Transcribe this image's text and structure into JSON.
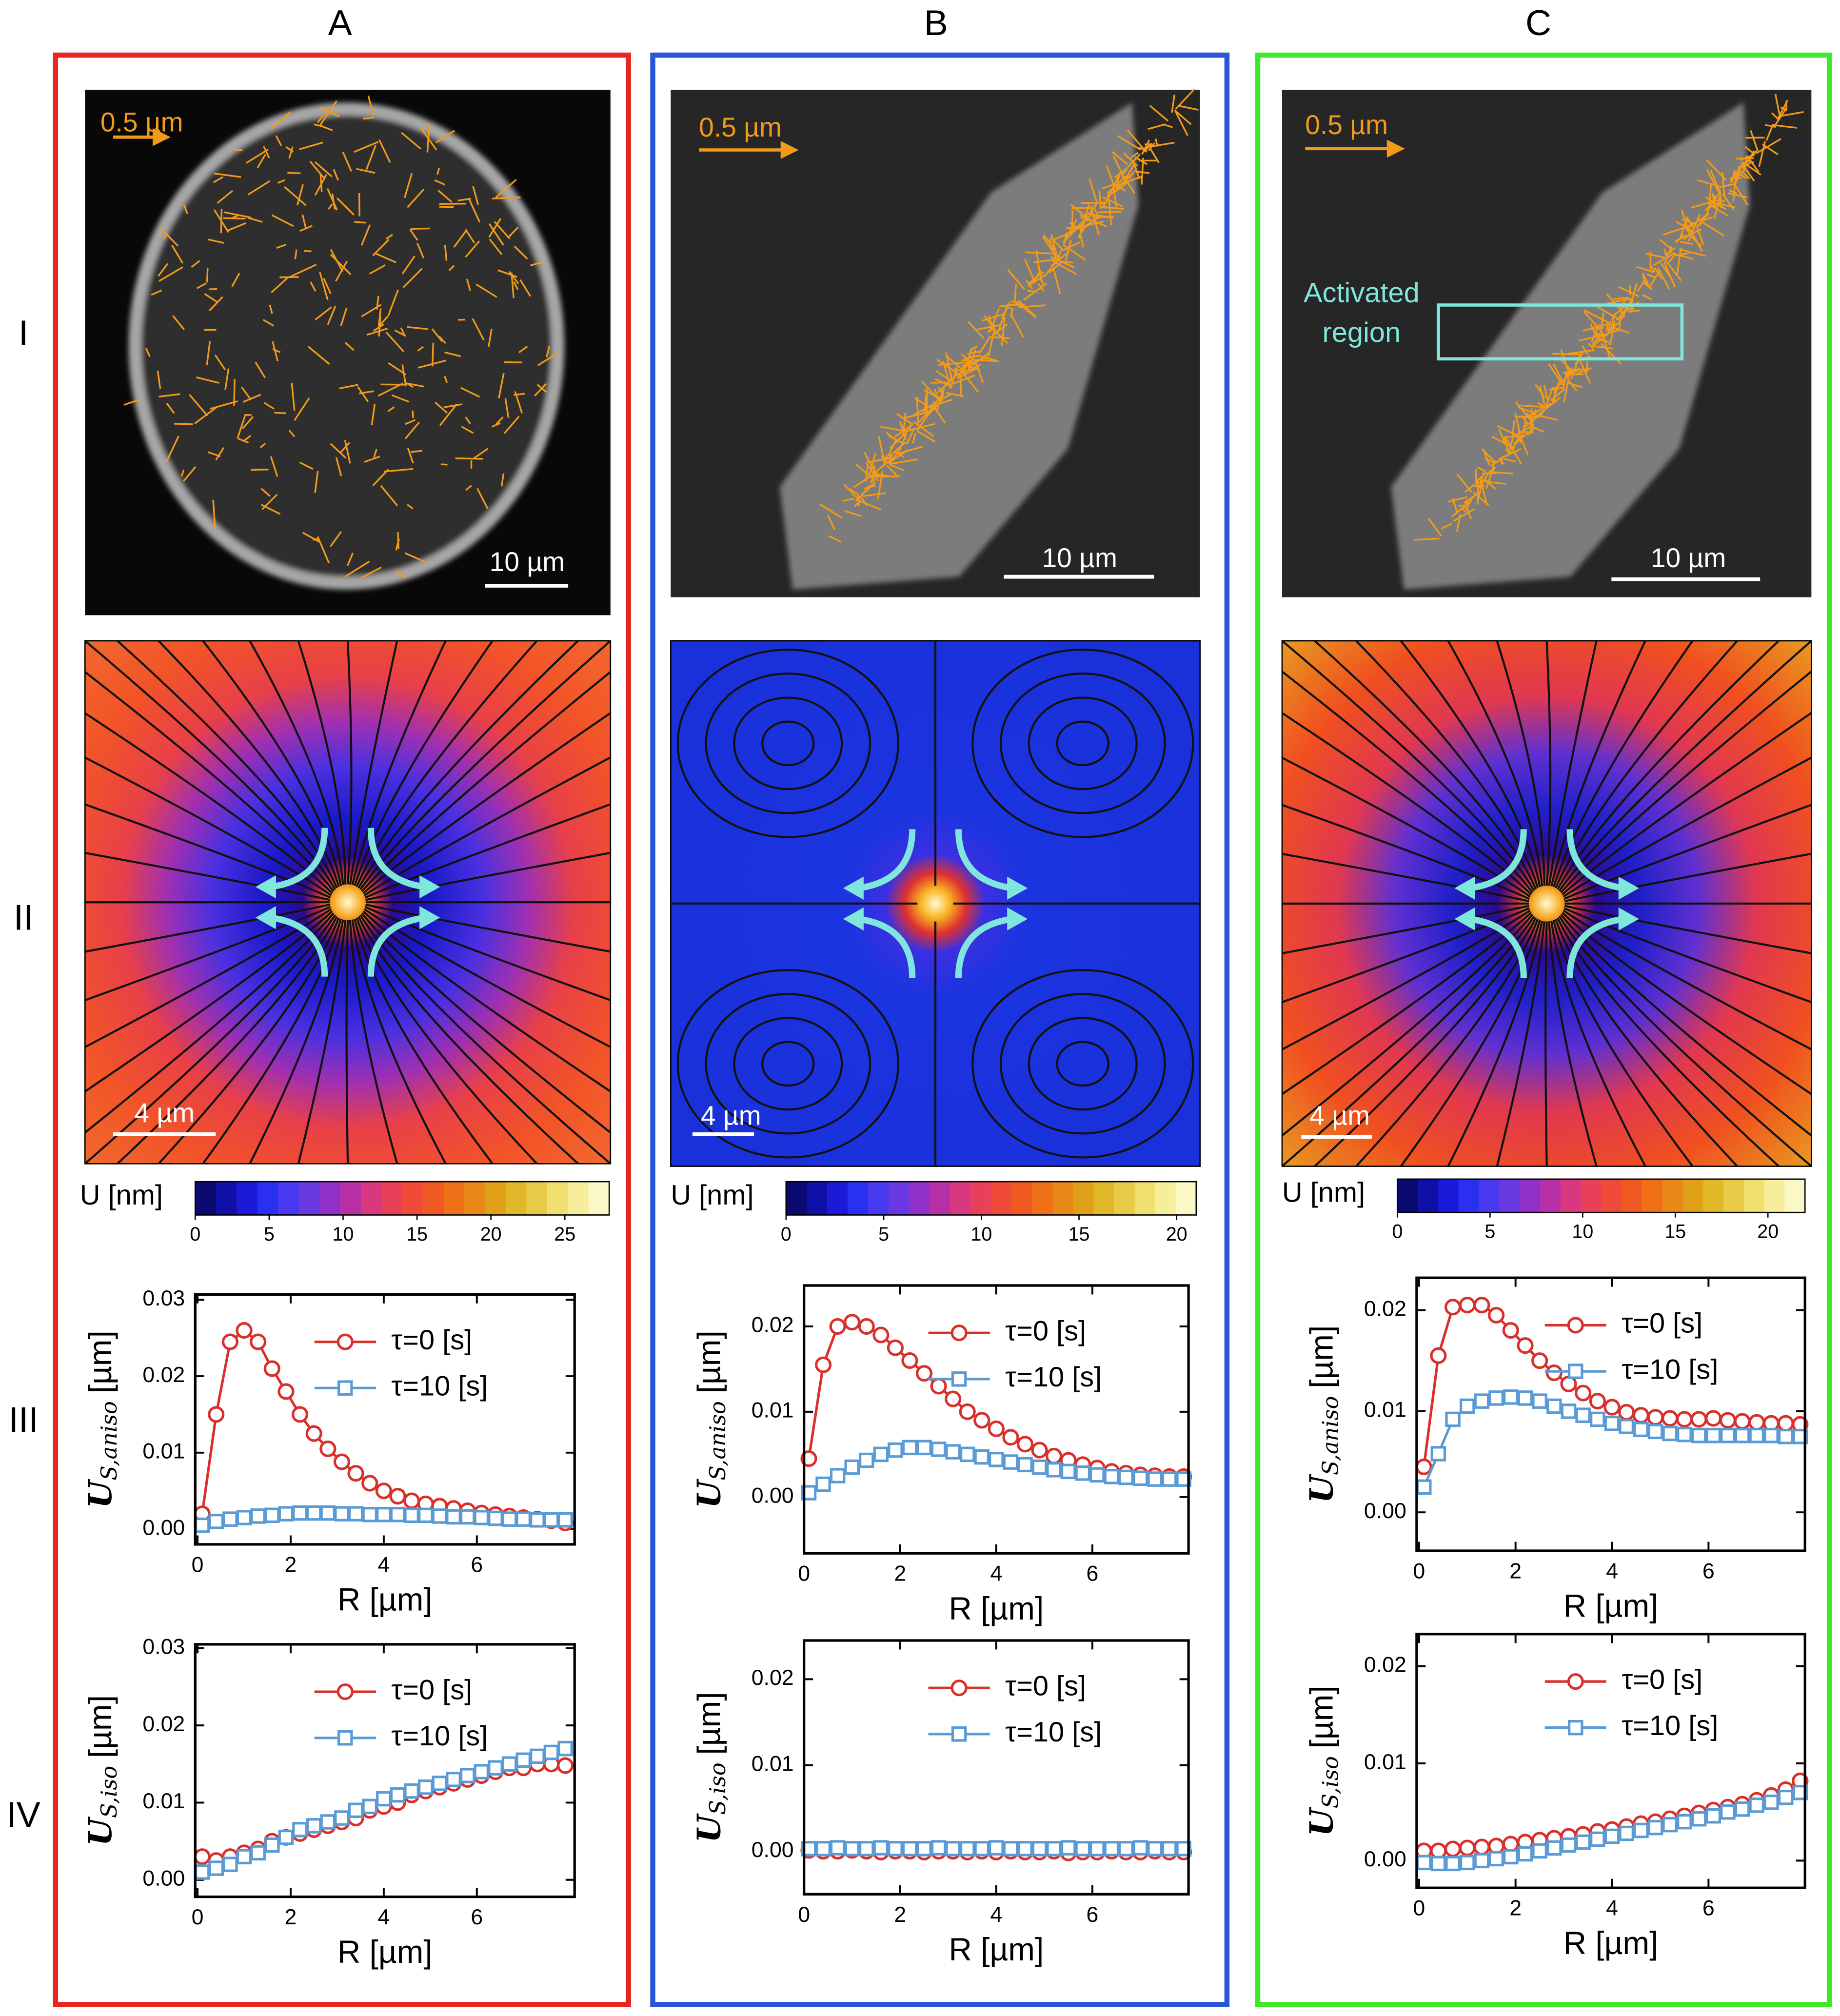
{
  "columns": [
    "A",
    "B",
    "C"
  ],
  "rows": [
    "I",
    "II",
    "III",
    "IV"
  ],
  "images": [
    {
      "arrow_label": "0.5 µm",
      "scale_label": "10 µm"
    },
    {
      "arrow_label": "0.5 µm",
      "scale_label": "10 µm"
    },
    {
      "arrow_label": "0.5 µm",
      "scale_label": "10 µm",
      "annotation": [
        "Activated",
        "region"
      ]
    }
  ],
  "maps": [
    {
      "scale_label": "4 µm",
      "colorbar": {
        "label": "U [nm]",
        "lim": [
          0,
          28
        ],
        "ticks": [
          0,
          5,
          10,
          15,
          20,
          25
        ]
      }
    },
    {
      "scale_label": "4 µm",
      "colorbar": {
        "label": "U [nm]",
        "lim": [
          0,
          21
        ],
        "ticks": [
          0,
          5,
          10,
          15,
          20
        ]
      }
    },
    {
      "scale_label": "4 µm",
      "colorbar": {
        "label": "U [nm]",
        "lim": [
          0,
          22
        ],
        "ticks": [
          0,
          5,
          10,
          15,
          20
        ]
      }
    }
  ],
  "chart_data": [
    {
      "type": "line",
      "xlabel": "R [µm]",
      "ylabel": [
        "U",
        "S,aniso",
        "[µm]"
      ],
      "xlim": [
        -0.05,
        8.1
      ],
      "ylim": [
        -0.002,
        0.0307
      ],
      "xticks": [
        0,
        2,
        4,
        6
      ],
      "yticks": [
        {
          "value": 0,
          "label": "0.00"
        },
        0.01,
        0.02,
        0.03
      ],
      "legend": "upper right",
      "x": [
        0.1,
        0.4,
        0.7,
        1.0,
        1.3,
        1.6,
        1.9,
        2.2,
        2.5,
        2.8,
        3.1,
        3.4,
        3.7,
        4.0,
        4.3,
        4.6,
        4.9,
        5.2,
        5.5,
        5.8,
        6.1,
        6.4,
        6.7,
        7.0,
        7.3,
        7.6,
        7.9
      ],
      "series": [
        {
          "name": "τ=0 [s]",
          "color": "#d9302c",
          "marker": "circle",
          "values": [
            0.002,
            0.015,
            0.0245,
            0.026,
            0.0245,
            0.021,
            0.018,
            0.015,
            0.0125,
            0.0105,
            0.0088,
            0.0073,
            0.006,
            0.005,
            0.0043,
            0.0037,
            0.0033,
            0.003,
            0.0027,
            0.0024,
            0.0021,
            0.0019,
            0.0017,
            0.0015,
            0.0013,
            0.0011,
            0.0008
          ]
        },
        {
          "name": "τ=10 [s]",
          "color": "#5b9bd5",
          "marker": "square",
          "values": [
            0.0005,
            0.001,
            0.0013,
            0.0015,
            0.0017,
            0.0018,
            0.002,
            0.0021,
            0.0021,
            0.0021,
            0.002,
            0.002,
            0.0019,
            0.0019,
            0.0019,
            0.0018,
            0.0018,
            0.0017,
            0.0016,
            0.0016,
            0.0015,
            0.0014,
            0.0013,
            0.0013,
            0.0012,
            0.0012,
            0.0012
          ]
        }
      ]
    },
    {
      "type": "line",
      "xlabel": "R [µm]",
      "ylabel": [
        "U",
        "S,iso",
        "[µm]"
      ],
      "xlim": [
        -0.05,
        8.1
      ],
      "ylim": [
        -0.0022,
        0.0305
      ],
      "xticks": [
        0,
        2,
        4,
        6
      ],
      "yticks": [
        {
          "value": 0,
          "label": "0.00"
        },
        0.01,
        0.02,
        0.03
      ],
      "legend": "upper right",
      "x": [
        0.1,
        0.4,
        0.7,
        1.0,
        1.3,
        1.6,
        1.9,
        2.2,
        2.5,
        2.8,
        3.1,
        3.4,
        3.7,
        4.0,
        4.3,
        4.6,
        4.9,
        5.2,
        5.5,
        5.8,
        6.1,
        6.4,
        6.7,
        7.0,
        7.3,
        7.6,
        7.9
      ],
      "series": [
        {
          "name": "τ=0 [s]",
          "color": "#d9302c",
          "marker": "circle",
          "values": [
            0.003,
            0.0025,
            0.003,
            0.0035,
            0.004,
            0.005,
            0.0055,
            0.006,
            0.0065,
            0.007,
            0.0075,
            0.008,
            0.009,
            0.0095,
            0.01,
            0.011,
            0.0115,
            0.012,
            0.0125,
            0.013,
            0.0135,
            0.014,
            0.0145,
            0.0145,
            0.015,
            0.015,
            0.0148
          ]
        },
        {
          "name": "τ=10 [s]",
          "color": "#5b9bd5",
          "marker": "square",
          "values": [
            0.001,
            0.0015,
            0.002,
            0.003,
            0.0035,
            0.0045,
            0.0055,
            0.0065,
            0.007,
            0.0075,
            0.008,
            0.009,
            0.0095,
            0.0105,
            0.011,
            0.0115,
            0.012,
            0.0125,
            0.013,
            0.0135,
            0.014,
            0.0145,
            0.015,
            0.0155,
            0.016,
            0.0165,
            0.017
          ]
        }
      ]
    },
    {
      "type": "line",
      "xlabel": "R [µm]",
      "ylabel": [
        "U",
        "S,aniso",
        "[µm]"
      ],
      "xlim": [
        0,
        8
      ],
      "ylim": [
        -0.0066,
        0.0248
      ],
      "xticks": [
        0,
        2,
        4,
        6
      ],
      "yticks": [
        {
          "value": 0,
          "label": "0.00"
        },
        0.01,
        0.02
      ],
      "legend": "upper right",
      "x": [
        0.1,
        0.4,
        0.7,
        1.0,
        1.3,
        1.6,
        1.9,
        2.2,
        2.5,
        2.8,
        3.1,
        3.4,
        3.7,
        4.0,
        4.3,
        4.6,
        4.9,
        5.2,
        5.5,
        5.8,
        6.1,
        6.4,
        6.7,
        7.0,
        7.3,
        7.6,
        7.9
      ],
      "series": [
        {
          "name": "τ=0 [s]",
          "color": "#d9302c",
          "marker": "circle",
          "values": [
            0.0045,
            0.0155,
            0.02,
            0.0205,
            0.02,
            0.019,
            0.0175,
            0.016,
            0.0145,
            0.013,
            0.0115,
            0.01,
            0.009,
            0.008,
            0.007,
            0.0062,
            0.0055,
            0.0048,
            0.0043,
            0.0038,
            0.0034,
            0.003,
            0.0028,
            0.0026,
            0.0025,
            0.0024,
            0.0024
          ]
        },
        {
          "name": "τ=10 [s]",
          "color": "#5b9bd5",
          "marker": "square",
          "values": [
            0.0005,
            0.0015,
            0.0025,
            0.0035,
            0.0043,
            0.005,
            0.0055,
            0.0058,
            0.0058,
            0.0056,
            0.0053,
            0.005,
            0.0047,
            0.0044,
            0.0041,
            0.0038,
            0.0035,
            0.0032,
            0.003,
            0.0028,
            0.0026,
            0.0024,
            0.0023,
            0.0022,
            0.0021,
            0.0021,
            0.0021
          ]
        }
      ]
    },
    {
      "type": "line",
      "xlabel": "R [µm]",
      "ylabel": [
        "U",
        "S,iso",
        "[µm]"
      ],
      "xlim": [
        0,
        8
      ],
      "ylim": [
        -0.005,
        0.0245
      ],
      "xticks": [
        0,
        2,
        4,
        6
      ],
      "yticks": [
        {
          "value": 0,
          "label": "0.00"
        },
        0.01,
        0.02
      ],
      "legend": "upper right",
      "x": [
        0.1,
        0.4,
        0.7,
        1.0,
        1.3,
        1.6,
        1.9,
        2.2,
        2.5,
        2.8,
        3.1,
        3.4,
        3.7,
        4.0,
        4.3,
        4.6,
        4.9,
        5.2,
        5.5,
        5.8,
        6.1,
        6.4,
        6.7,
        7.0,
        7.3,
        7.6,
        7.9
      ],
      "series": [
        {
          "name": "τ=0 [s]",
          "color": "#d9302c",
          "marker": "circle",
          "values": [
            0.0001,
            0,
            0,
            0.0001,
            0,
            -0.0001,
            0,
            0,
            -0.0001,
            0,
            0,
            -0.0001,
            0,
            -0.0001,
            0,
            -0.0001,
            -0.0001,
            0,
            -0.0002,
            -0.0001,
            -0.0001,
            0,
            -0.0001,
            -0.0001,
            0,
            -0.0001,
            -0.0001
          ]
        },
        {
          "name": "τ=10 [s]",
          "color": "#5b9bd5",
          "marker": "square",
          "values": [
            0.0003,
            0.0003,
            0.0004,
            0.0003,
            0.0003,
            0.0004,
            0.0003,
            0.0003,
            0.0003,
            0.0004,
            0.0003,
            0.0003,
            0.0003,
            0.0004,
            0.0003,
            0.0003,
            0.0003,
            0.0003,
            0.0004,
            0.0003,
            0.0003,
            0.0003,
            0.0003,
            0.0004,
            0.0003,
            0.0003,
            0.0003
          ]
        }
      ]
    },
    {
      "type": "line",
      "xlabel": "R [µm]",
      "ylabel": [
        "U",
        "S,aniso",
        "[µm]"
      ],
      "xlim": [
        -0.05,
        8
      ],
      "ylim": [
        -0.0038,
        0.0232
      ],
      "xticks": [
        0,
        2,
        4,
        6
      ],
      "yticks": [
        {
          "value": 0,
          "label": "0.00"
        },
        0.01,
        0.02
      ],
      "legend": "upper right",
      "x": [
        0.1,
        0.4,
        0.7,
        1.0,
        1.3,
        1.6,
        1.9,
        2.2,
        2.5,
        2.8,
        3.1,
        3.4,
        3.7,
        4.0,
        4.3,
        4.6,
        4.9,
        5.2,
        5.5,
        5.8,
        6.1,
        6.4,
        6.7,
        7.0,
        7.3,
        7.6,
        7.9
      ],
      "series": [
        {
          "name": "τ=0 [s]",
          "color": "#d9302c",
          "marker": "circle",
          "values": [
            0.0045,
            0.0155,
            0.0203,
            0.0205,
            0.0205,
            0.0195,
            0.018,
            0.0165,
            0.015,
            0.0138,
            0.0127,
            0.0118,
            0.011,
            0.0104,
            0.0099,
            0.0096,
            0.0094,
            0.0093,
            0.0092,
            0.0092,
            0.0093,
            0.0091,
            0.009,
            0.0089,
            0.0088,
            0.0088,
            0.0087
          ]
        },
        {
          "name": "τ=10 [s]",
          "color": "#5b9bd5",
          "marker": "square",
          "values": [
            0.0025,
            0.0058,
            0.0092,
            0.0105,
            0.011,
            0.0113,
            0.0114,
            0.0113,
            0.011,
            0.0105,
            0.01,
            0.0096,
            0.0092,
            0.0088,
            0.0085,
            0.0082,
            0.008,
            0.0078,
            0.0077,
            0.0076,
            0.0076,
            0.0076,
            0.0076,
            0.0076,
            0.0076,
            0.0075,
            0.0075
          ]
        }
      ]
    },
    {
      "type": "line",
      "xlabel": "R [µm]",
      "ylabel": [
        "U",
        "S,iso",
        "[µm]"
      ],
      "xlim": [
        -0.05,
        8
      ],
      "ylim": [
        -0.0028,
        0.0233
      ],
      "xticks": [
        0,
        2,
        4,
        6
      ],
      "yticks": [
        {
          "value": 0,
          "label": "0.00"
        },
        0.01,
        0.02
      ],
      "legend": "upper right",
      "x": [
        0.1,
        0.4,
        0.7,
        1.0,
        1.3,
        1.6,
        1.9,
        2.2,
        2.5,
        2.8,
        3.1,
        3.4,
        3.7,
        4.0,
        4.3,
        4.6,
        4.9,
        5.2,
        5.5,
        5.8,
        6.1,
        6.4,
        6.7,
        7.0,
        7.3,
        7.6,
        7.9
      ],
      "series": [
        {
          "name": "τ=0 [s]",
          "color": "#d9302c",
          "marker": "circle",
          "values": [
            0.001,
            0.001,
            0.0012,
            0.0013,
            0.0014,
            0.0015,
            0.0017,
            0.0019,
            0.0021,
            0.0023,
            0.0025,
            0.0027,
            0.003,
            0.0032,
            0.0035,
            0.0038,
            0.004,
            0.0043,
            0.0046,
            0.0049,
            0.0052,
            0.0055,
            0.0058,
            0.0062,
            0.0067,
            0.0073,
            0.0082
          ]
        },
        {
          "name": "τ=10 [s]",
          "color": "#5b9bd5",
          "marker": "square",
          "values": [
            -0.0002,
            -0.0003,
            -0.0003,
            -0.0002,
            0,
            0.0002,
            0.0004,
            0.0007,
            0.001,
            0.0013,
            0.0016,
            0.0019,
            0.0022,
            0.0025,
            0.0028,
            0.0031,
            0.0034,
            0.0037,
            0.004,
            0.0043,
            0.0046,
            0.005,
            0.0053,
            0.0057,
            0.006,
            0.0065,
            0.007
          ]
        }
      ]
    }
  ]
}
